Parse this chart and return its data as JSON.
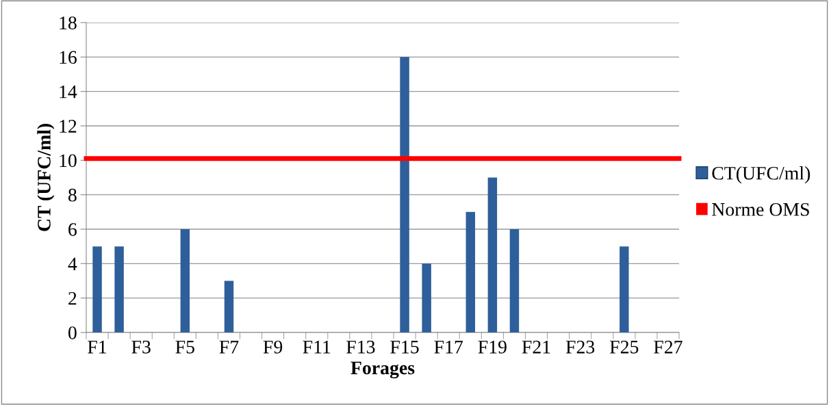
{
  "chart_data": {
    "type": "bar",
    "xlabel": "Forages",
    "ylabel": "CT (UFC/ml)",
    "categories": [
      "F1",
      null,
      "F3",
      null,
      "F5",
      null,
      "F7",
      null,
      "F9",
      null,
      "F11",
      null,
      "F13",
      null,
      "F15",
      null,
      "F17",
      null,
      "F19",
      null,
      "F21",
      null,
      "F23",
      null,
      "F25",
      null,
      "F27"
    ],
    "series": [
      {
        "name": "CT(UFC/ml)",
        "color": "#2e5f9a",
        "values": [
          5,
          5,
          0,
          0,
          6,
          0,
          3,
          0,
          0,
          0,
          0,
          0,
          0,
          0,
          16,
          4,
          0,
          7,
          9,
          6,
          0,
          0,
          0,
          0,
          5,
          0,
          0
        ]
      }
    ],
    "ref_lines": [
      {
        "axis": "y",
        "value": 10.1,
        "label": "Norme OMS",
        "color": "#ff0000"
      }
    ],
    "ylim": [
      0,
      18
    ],
    "yticks": [
      0,
      2,
      4,
      6,
      8,
      10,
      12,
      14,
      16,
      18
    ],
    "grid": "y",
    "legend": "right"
  }
}
